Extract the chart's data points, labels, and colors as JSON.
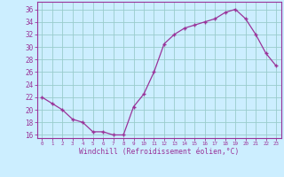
{
  "x": [
    0,
    1,
    2,
    3,
    4,
    5,
    6,
    7,
    8,
    9,
    10,
    11,
    12,
    13,
    14,
    15,
    16,
    17,
    18,
    19,
    20,
    21,
    22,
    23
  ],
  "y": [
    22,
    21,
    20,
    18.5,
    18,
    16.5,
    16.5,
    16,
    16,
    20.5,
    22.5,
    26,
    30.5,
    32,
    33,
    33.5,
    34,
    34.5,
    35.5,
    36,
    34.5,
    32,
    29,
    27
  ],
  "line_color": "#993399",
  "marker": "+",
  "bg_color": "#cceeff",
  "grid_color": "#99cccc",
  "xlabel": "Windchill (Refroidissement éolien,°C)",
  "ylabel_ticks": [
    16,
    18,
    20,
    22,
    24,
    26,
    28,
    30,
    32,
    34,
    36
  ],
  "xtick_labels": [
    "0",
    "1",
    "2",
    "3",
    "4",
    "5",
    "6",
    "7",
    "8",
    "9",
    "10",
    "11",
    "12",
    "13",
    "14",
    "15",
    "16",
    "17",
    "18",
    "19",
    "20",
    "21",
    "22",
    "23"
  ],
  "ylim": [
    15.5,
    37.2
  ],
  "xlim": [
    -0.5,
    23.5
  ],
  "tick_color": "#993399",
  "spine_color": "#993399"
}
